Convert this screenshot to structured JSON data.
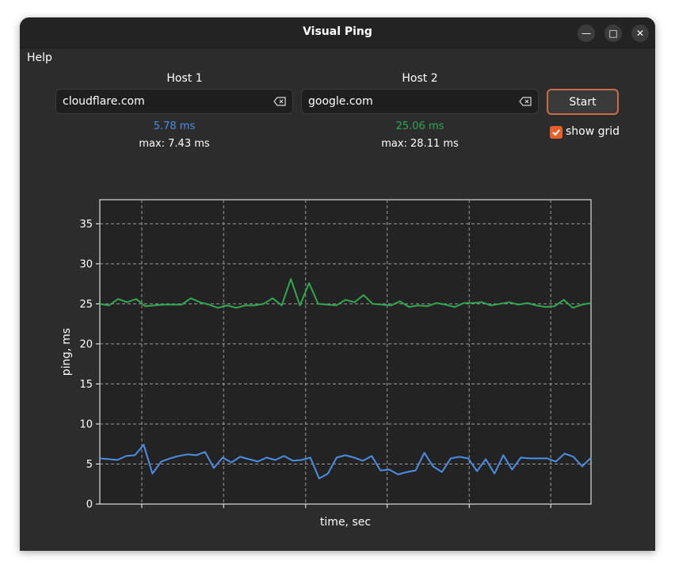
{
  "window": {
    "title": "Visual Ping",
    "controls": {
      "minimize": "—",
      "maximize": "□",
      "close": "✕"
    }
  },
  "menu": {
    "help": "Help"
  },
  "host1": {
    "label": "Host 1",
    "value": "cloudflare.com",
    "current": "5.78 ms",
    "max": "max: 7.43 ms",
    "color": "#4a8ee6"
  },
  "host2": {
    "label": "Host 2",
    "value": "google.com",
    "current": "25.06 ms",
    "max": "max: 28.11 ms",
    "color": "#2fa84f"
  },
  "controls": {
    "start_label": "Start",
    "show_grid_label": "show grid",
    "show_grid_checked": true,
    "accent": "#e8602c"
  },
  "chart_data": {
    "type": "line",
    "xlabel": "time, sec",
    "ylabel": "ping, ms",
    "ylim": [
      0,
      38
    ],
    "yticks": [
      0,
      5,
      10,
      15,
      20,
      25,
      30,
      35
    ],
    "grid": true,
    "series": [
      {
        "color": "#2fa84f",
        "values": [
          25.0,
          24.8,
          25.6,
          25.2,
          25.6,
          24.7,
          24.8,
          24.9,
          24.9,
          24.9,
          25.7,
          25.2,
          24.9,
          24.5,
          24.8,
          24.5,
          24.8,
          24.8,
          25.0,
          25.7,
          24.8,
          28.1,
          24.8,
          27.6,
          25.0,
          24.9,
          24.8,
          25.5,
          25.2,
          26.1,
          25.0,
          24.9,
          24.8,
          25.3,
          24.6,
          24.8,
          24.7,
          25.1,
          24.9,
          24.6,
          25.1,
          25.1,
          25.2,
          24.8,
          25.0,
          25.2,
          24.9,
          25.1,
          24.8,
          24.6,
          24.7,
          25.5,
          24.5,
          24.9,
          25.1
        ]
      },
      {
        "color": "#4a8ee6",
        "values": [
          5.7,
          5.6,
          5.5,
          6.0,
          6.1,
          7.4,
          3.8,
          5.3,
          5.7,
          6.0,
          6.2,
          6.1,
          6.5,
          4.5,
          5.8,
          5.2,
          5.9,
          5.6,
          5.3,
          5.8,
          5.5,
          6.0,
          5.4,
          5.5,
          5.8,
          3.2,
          3.8,
          5.8,
          6.1,
          5.8,
          5.4,
          6.0,
          4.2,
          4.3,
          3.7,
          4.0,
          4.2,
          6.4,
          4.7,
          4.0,
          5.7,
          5.9,
          5.7,
          4.1,
          5.6,
          3.8,
          6.1,
          4.3,
          5.8,
          5.7,
          5.7,
          5.7,
          5.3,
          6.3,
          5.9,
          4.7,
          5.8
        ]
      }
    ]
  }
}
